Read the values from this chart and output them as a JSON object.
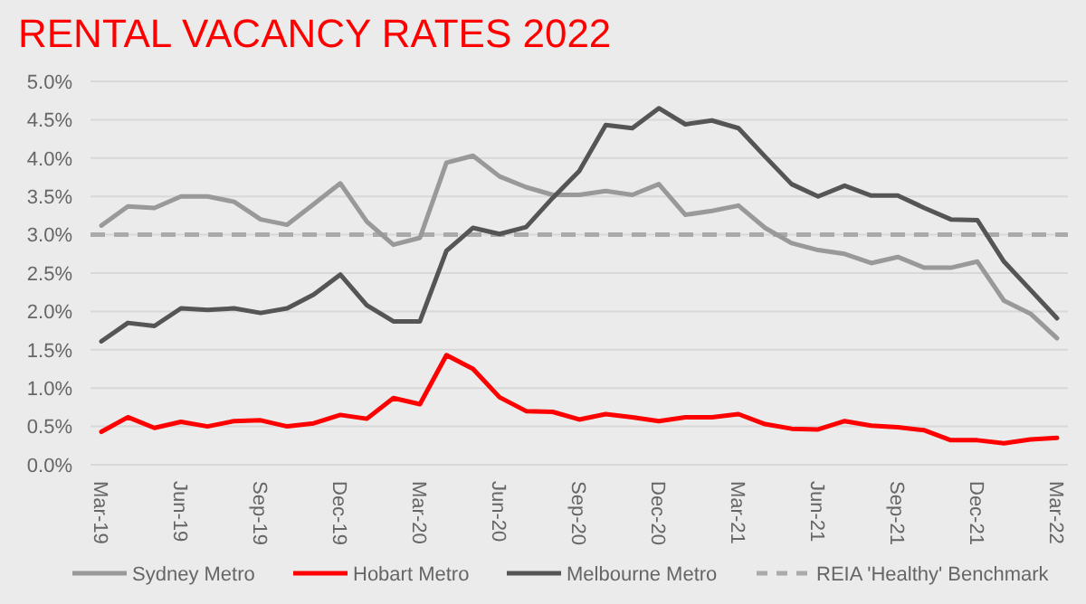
{
  "chart_data": {
    "type": "line",
    "title": "RENTAL VACANCY RATES 2022",
    "categories": [
      "Mar-19",
      null,
      null,
      "Jun-19",
      null,
      null,
      "Sep-19",
      null,
      null,
      "Dec-19",
      null,
      null,
      "Mar-20",
      null,
      null,
      "Jun-20",
      null,
      null,
      "Sep-20",
      null,
      null,
      "Dec-20",
      null,
      null,
      "Mar-21",
      null,
      null,
      "Jun-21",
      null,
      null,
      "Sep-21",
      null,
      null,
      "Dec-21",
      null,
      null,
      "Mar-22"
    ],
    "series": [
      {
        "name": "Sydney Metro",
        "color": "#999999",
        "values": [
          3.12,
          3.37,
          3.35,
          3.5,
          3.5,
          3.43,
          3.2,
          3.13,
          3.4,
          3.67,
          3.17,
          2.87,
          2.96,
          3.94,
          4.03,
          3.76,
          3.62,
          3.52,
          3.52,
          3.57,
          3.52,
          3.66,
          3.26,
          3.31,
          3.38,
          3.09,
          2.89,
          2.8,
          2.75,
          2.63,
          2.71,
          2.57,
          2.57,
          2.65,
          2.14,
          1.97,
          1.65
        ]
      },
      {
        "name": "Hobart Metro",
        "color": "#ff0000",
        "values": [
          0.43,
          0.62,
          0.48,
          0.56,
          0.5,
          0.57,
          0.58,
          0.5,
          0.54,
          0.65,
          0.6,
          0.87,
          0.79,
          1.43,
          1.25,
          0.88,
          0.7,
          0.69,
          0.59,
          0.66,
          0.62,
          0.57,
          0.62,
          0.62,
          0.66,
          0.53,
          0.47,
          0.46,
          0.57,
          0.51,
          0.49,
          0.45,
          0.32,
          0.32,
          0.28,
          0.33,
          0.35
        ]
      },
      {
        "name": "Melbourne Metro",
        "color": "#555555",
        "values": [
          1.61,
          1.85,
          1.81,
          2.04,
          2.02,
          2.04,
          1.98,
          2.04,
          2.22,
          2.48,
          2.08,
          1.87,
          1.87,
          2.79,
          3.09,
          3.01,
          3.1,
          3.48,
          3.83,
          4.43,
          4.39,
          4.65,
          4.44,
          4.49,
          4.39,
          4.02,
          3.66,
          3.5,
          3.64,
          3.51,
          3.51,
          3.35,
          3.2,
          3.19,
          2.65,
          2.28,
          1.91
        ]
      }
    ],
    "ylim": [
      0,
      5
    ],
    "yticks": [
      {
        "value": 0,
        "label": "0.0%"
      },
      {
        "value": 0.5,
        "label": "0.5%"
      },
      {
        "value": 1,
        "label": "1.0%"
      },
      {
        "value": 1.5,
        "label": "1.5%"
      },
      {
        "value": 2,
        "label": "2.0%"
      },
      {
        "value": 2.5,
        "label": "2.5%"
      },
      {
        "value": 3,
        "label": "3.0%"
      },
      {
        "value": 3.5,
        "label": "3.5%"
      },
      {
        "value": 4,
        "label": "4.0%"
      },
      {
        "value": 4.5,
        "label": "4.5%"
      },
      {
        "value": 5,
        "label": "5.0%"
      }
    ],
    "ref_lines": [
      {
        "axis": "y",
        "value": 3,
        "label": "REIA 'Healthy' Benchmark",
        "color": "#aaaaaa",
        "line_style": "dashed"
      }
    ],
    "grid": "y",
    "legend": "bottom",
    "line_style": "solid"
  }
}
